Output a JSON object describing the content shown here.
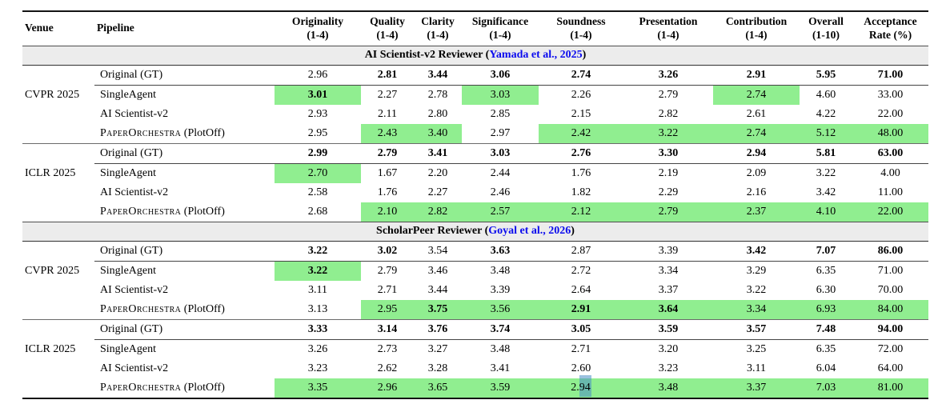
{
  "colors": {
    "highlight_green": "#90ee90",
    "band_gray": "#ececec",
    "citation_blue": "#0b0bee",
    "selection_teal": "rgba(72,142,196,0.55)"
  },
  "table": {
    "headers": [
      {
        "label": "Venue",
        "range": ""
      },
      {
        "label": "Pipeline",
        "range": ""
      },
      {
        "label": "Originality",
        "range": "(1-4)"
      },
      {
        "label": "Quality",
        "range": "(1-4)"
      },
      {
        "label": "Clarity",
        "range": "(1-4)"
      },
      {
        "label": "Significance",
        "range": "(1-4)"
      },
      {
        "label": "Soundness",
        "range": "(1-4)"
      },
      {
        "label": "Presentation",
        "range": "(1-4)"
      },
      {
        "label": "Contribution",
        "range": "(1-4)"
      },
      {
        "label": "Overall",
        "range": "(1-10)"
      },
      {
        "label": "Acceptance",
        "range": "Rate (%)"
      }
    ],
    "sections": [
      {
        "title_prefix": "AI Scientist-v2 Reviewer (",
        "citation": "Yamada et al., 2025",
        "title_suffix": ")",
        "groups": [
          {
            "venue": "CVPR 2025",
            "rows": [
              {
                "sc": "",
                "rest": "Original (GT)",
                "cells": [
                  {
                    "v": "2.96"
                  },
                  {
                    "v": "2.81",
                    "b": 1
                  },
                  {
                    "v": "3.44",
                    "b": 1
                  },
                  {
                    "v": "3.06",
                    "b": 1
                  },
                  {
                    "v": "2.74",
                    "b": 1
                  },
                  {
                    "v": "3.26",
                    "b": 1
                  },
                  {
                    "v": "2.91",
                    "b": 1
                  },
                  {
                    "v": "5.95",
                    "b": 1
                  },
                  {
                    "v": "71.00",
                    "b": 1
                  }
                ]
              },
              {
                "sc": "",
                "rest": "SingleAgent",
                "cells": [
                  {
                    "v": "3.01",
                    "b": 1,
                    "h": 1
                  },
                  {
                    "v": "2.27"
                  },
                  {
                    "v": "2.78"
                  },
                  {
                    "v": "3.03",
                    "h": 1
                  },
                  {
                    "v": "2.26"
                  },
                  {
                    "v": "2.79"
                  },
                  {
                    "v": "2.74",
                    "h": 1
                  },
                  {
                    "v": "4.60"
                  },
                  {
                    "v": "33.00"
                  }
                ]
              },
              {
                "sc": "",
                "rest": "AI Scientist-v2",
                "cells": [
                  {
                    "v": "2.93"
                  },
                  {
                    "v": "2.11"
                  },
                  {
                    "v": "2.80"
                  },
                  {
                    "v": "2.85"
                  },
                  {
                    "v": "2.15"
                  },
                  {
                    "v": "2.82"
                  },
                  {
                    "v": "2.61"
                  },
                  {
                    "v": "4.22"
                  },
                  {
                    "v": "22.00"
                  }
                ]
              },
              {
                "sc": "PaperOrchestra",
                "rest": " (PlotOff)",
                "cells": [
                  {
                    "v": "2.95"
                  },
                  {
                    "v": "2.43",
                    "h": 1
                  },
                  {
                    "v": "3.40",
                    "h": 1
                  },
                  {
                    "v": "2.97"
                  },
                  {
                    "v": "2.42",
                    "h": 1
                  },
                  {
                    "v": "3.22",
                    "h": 1
                  },
                  {
                    "v": "2.74",
                    "h": 1
                  },
                  {
                    "v": "5.12",
                    "h": 1
                  },
                  {
                    "v": "48.00",
                    "h": 1
                  }
                ]
              }
            ]
          },
          {
            "venue": "ICLR 2025",
            "rows": [
              {
                "sc": "",
                "rest": "Original (GT)",
                "cells": [
                  {
                    "v": "2.99",
                    "b": 1
                  },
                  {
                    "v": "2.79",
                    "b": 1
                  },
                  {
                    "v": "3.41",
                    "b": 1
                  },
                  {
                    "v": "3.03",
                    "b": 1
                  },
                  {
                    "v": "2.76",
                    "b": 1
                  },
                  {
                    "v": "3.30",
                    "b": 1
                  },
                  {
                    "v": "2.94",
                    "b": 1
                  },
                  {
                    "v": "5.81",
                    "b": 1
                  },
                  {
                    "v": "63.00",
                    "b": 1
                  }
                ]
              },
              {
                "sc": "",
                "rest": "SingleAgent",
                "cells": [
                  {
                    "v": "2.70",
                    "h": 1
                  },
                  {
                    "v": "1.67"
                  },
                  {
                    "v": "2.20"
                  },
                  {
                    "v": "2.44"
                  },
                  {
                    "v": "1.76"
                  },
                  {
                    "v": "2.19"
                  },
                  {
                    "v": "2.09"
                  },
                  {
                    "v": "3.22"
                  },
                  {
                    "v": "4.00"
                  }
                ]
              },
              {
                "sc": "",
                "rest": "AI Scientist-v2",
                "cells": [
                  {
                    "v": "2.58"
                  },
                  {
                    "v": "1.76"
                  },
                  {
                    "v": "2.27"
                  },
                  {
                    "v": "2.46"
                  },
                  {
                    "v": "1.82"
                  },
                  {
                    "v": "2.29"
                  },
                  {
                    "v": "2.16"
                  },
                  {
                    "v": "3.42"
                  },
                  {
                    "v": "11.00"
                  }
                ]
              },
              {
                "sc": "PaperOrchestra",
                "rest": " (PlotOff)",
                "cells": [
                  {
                    "v": "2.68"
                  },
                  {
                    "v": "2.10",
                    "h": 1
                  },
                  {
                    "v": "2.82",
                    "h": 1
                  },
                  {
                    "v": "2.57",
                    "h": 1
                  },
                  {
                    "v": "2.12",
                    "h": 1
                  },
                  {
                    "v": "2.79",
                    "h": 1
                  },
                  {
                    "v": "2.37",
                    "h": 1
                  },
                  {
                    "v": "4.10",
                    "h": 1
                  },
                  {
                    "v": "22.00",
                    "h": 1
                  }
                ]
              }
            ]
          }
        ]
      },
      {
        "title_prefix": "ScholarPeer Reviewer (",
        "citation": "Goyal et al., 2026",
        "title_suffix": ")",
        "groups": [
          {
            "venue": "CVPR 2025",
            "rows": [
              {
                "sc": "",
                "rest": "Original (GT)",
                "cells": [
                  {
                    "v": "3.22",
                    "b": 1
                  },
                  {
                    "v": "3.02",
                    "b": 1
                  },
                  {
                    "v": "3.54"
                  },
                  {
                    "v": "3.63",
                    "b": 1
                  },
                  {
                    "v": "2.87"
                  },
                  {
                    "v": "3.39"
                  },
                  {
                    "v": "3.42",
                    "b": 1
                  },
                  {
                    "v": "7.07",
                    "b": 1
                  },
                  {
                    "v": "86.00",
                    "b": 1
                  }
                ]
              },
              {
                "sc": "",
                "rest": "SingleAgent",
                "cells": [
                  {
                    "v": "3.22",
                    "b": 1,
                    "h": 1
                  },
                  {
                    "v": "2.79"
                  },
                  {
                    "v": "3.46"
                  },
                  {
                    "v": "3.48"
                  },
                  {
                    "v": "2.72"
                  },
                  {
                    "v": "3.34"
                  },
                  {
                    "v": "3.29"
                  },
                  {
                    "v": "6.35"
                  },
                  {
                    "v": "71.00"
                  }
                ]
              },
              {
                "sc": "",
                "rest": "AI Scientist-v2",
                "cells": [
                  {
                    "v": "3.11"
                  },
                  {
                    "v": "2.71"
                  },
                  {
                    "v": "3.44"
                  },
                  {
                    "v": "3.39"
                  },
                  {
                    "v": "2.64"
                  },
                  {
                    "v": "3.37"
                  },
                  {
                    "v": "3.22"
                  },
                  {
                    "v": "6.30"
                  },
                  {
                    "v": "70.00"
                  }
                ]
              },
              {
                "sc": "PaperOrchestra",
                "rest": " (PlotOff)",
                "cells": [
                  {
                    "v": "3.13"
                  },
                  {
                    "v": "2.95",
                    "h": 1
                  },
                  {
                    "v": "3.75",
                    "b": 1,
                    "h": 1
                  },
                  {
                    "v": "3.56",
                    "h": 1
                  },
                  {
                    "v": "2.91",
                    "b": 1,
                    "h": 1
                  },
                  {
                    "v": "3.64",
                    "b": 1,
                    "h": 1
                  },
                  {
                    "v": "3.34",
                    "h": 1
                  },
                  {
                    "v": "6.93",
                    "h": 1
                  },
                  {
                    "v": "84.00",
                    "h": 1
                  }
                ]
              }
            ]
          },
          {
            "venue": "ICLR 2025",
            "rows": [
              {
                "sc": "",
                "rest": "Original (GT)",
                "cells": [
                  {
                    "v": "3.33",
                    "b": 1
                  },
                  {
                    "v": "3.14",
                    "b": 1
                  },
                  {
                    "v": "3.76",
                    "b": 1
                  },
                  {
                    "v": "3.74",
                    "b": 1
                  },
                  {
                    "v": "3.05",
                    "b": 1
                  },
                  {
                    "v": "3.59",
                    "b": 1
                  },
                  {
                    "v": "3.57",
                    "b": 1
                  },
                  {
                    "v": "7.48",
                    "b": 1
                  },
                  {
                    "v": "94.00",
                    "b": 1
                  }
                ]
              },
              {
                "sc": "",
                "rest": "SingleAgent",
                "cells": [
                  {
                    "v": "3.26"
                  },
                  {
                    "v": "2.73"
                  },
                  {
                    "v": "3.27"
                  },
                  {
                    "v": "3.48"
                  },
                  {
                    "v": "2.71"
                  },
                  {
                    "v": "3.20"
                  },
                  {
                    "v": "3.25"
                  },
                  {
                    "v": "6.35"
                  },
                  {
                    "v": "72.00"
                  }
                ]
              },
              {
                "sc": "",
                "rest": "AI Scientist-v2",
                "cells": [
                  {
                    "v": "3.23"
                  },
                  {
                    "v": "2.62"
                  },
                  {
                    "v": "3.28"
                  },
                  {
                    "v": "3.41"
                  },
                  {
                    "v": "2.60"
                  },
                  {
                    "v": "3.23"
                  },
                  {
                    "v": "3.11"
                  },
                  {
                    "v": "6.04"
                  },
                  {
                    "v": "64.00"
                  }
                ]
              },
              {
                "sc": "PaperOrchestra",
                "rest": " (PlotOff)",
                "cells": [
                  {
                    "v": "3.35",
                    "h": 1
                  },
                  {
                    "v": "2.96",
                    "h": 1
                  },
                  {
                    "v": "3.65",
                    "h": 1
                  },
                  {
                    "v": "3.59",
                    "h": 1
                  },
                  {
                    "v": "2.94",
                    "h": 1,
                    "sel": [
                      "2.",
                      "94"
                    ]
                  },
                  {
                    "v": "3.48",
                    "h": 1
                  },
                  {
                    "v": "3.37",
                    "h": 1
                  },
                  {
                    "v": "7.03",
                    "h": 1
                  },
                  {
                    "v": "81.00",
                    "h": 1
                  }
                ]
              }
            ]
          }
        ]
      }
    ]
  }
}
